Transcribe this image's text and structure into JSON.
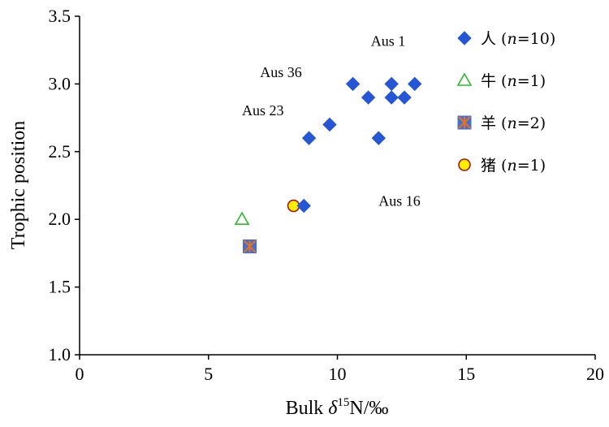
{
  "chart_data": {
    "type": "scatter",
    "xlabel": {
      "prefix": "Bulk ",
      "symbol": "δ",
      "superscript": "15",
      "suffix": "N/‰"
    },
    "ylabel": "Trophic position",
    "xlim": [
      0,
      20
    ],
    "ylim": [
      1.0,
      3.5
    ],
    "xticks": [
      "0",
      "5",
      "10",
      "15",
      "20"
    ],
    "yticks": [
      "1.0",
      "1.5",
      "2.0",
      "2.5",
      "3.0",
      "3.5"
    ],
    "grid": false,
    "legend_position": "top-right",
    "series": [
      {
        "name": "人 (n=10)",
        "name_main": "人",
        "n_label": "n",
        "n_value": "=10",
        "marker": "diamond",
        "color": "#2456d6",
        "points": [
          {
            "x": 8.7,
            "y": 2.1
          },
          {
            "x": 8.9,
            "y": 2.6
          },
          {
            "x": 9.7,
            "y": 2.7
          },
          {
            "x": 10.6,
            "y": 3.0
          },
          {
            "x": 11.2,
            "y": 2.9
          },
          {
            "x": 11.6,
            "y": 2.6
          },
          {
            "x": 12.1,
            "y": 3.0
          },
          {
            "x": 12.1,
            "y": 2.9
          },
          {
            "x": 12.6,
            "y": 2.9
          },
          {
            "x": 13.0,
            "y": 3.0
          }
        ]
      },
      {
        "name": "牛 (n=1)",
        "name_main": "牛",
        "n_label": "n",
        "n_value": "=1",
        "marker": "triangle-open",
        "color": "#2db82d",
        "points": [
          {
            "x": 6.3,
            "y": 2.0
          }
        ]
      },
      {
        "name": "羊 (n=2)",
        "name_main": "羊",
        "n_label": "n",
        "n_value": "=2",
        "marker": "square-asterisk",
        "color": "#4a6fc9",
        "accent": "#e8731f",
        "points": [
          {
            "x": 6.6,
            "y": 1.8
          },
          {
            "x": 6.6,
            "y": 1.8
          }
        ]
      },
      {
        "name": "猪 (n=1)",
        "name_main": "猪",
        "n_label": "n",
        "n_value": "=1",
        "marker": "circle",
        "color": "#ffee00",
        "edge": "#a01818",
        "points": [
          {
            "x": 8.3,
            "y": 2.1
          }
        ]
      }
    ],
    "annotations": [
      {
        "text": "Aus 1",
        "x": 11.3,
        "y": 3.28
      },
      {
        "text": "Aus 36",
        "x": 7.0,
        "y": 3.05
      },
      {
        "text": "Aus 23",
        "x": 6.3,
        "y": 2.77
      },
      {
        "text": "Aus 16",
        "x": 11.6,
        "y": 2.1
      }
    ]
  }
}
